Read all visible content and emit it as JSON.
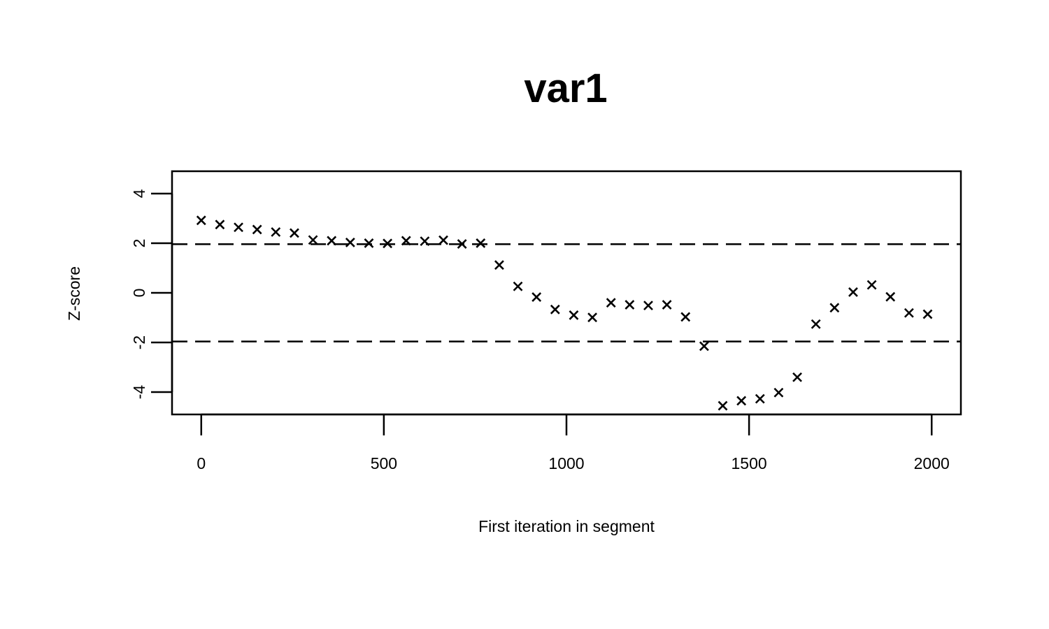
{
  "chart_data": {
    "type": "scatter",
    "title": "var1",
    "xlabel": "First iteration in segment",
    "ylabel": "Z-score",
    "xlim": [
      -80,
      2080
    ],
    "ylim": [
      -4.9,
      4.9
    ],
    "x_ticks": [
      0,
      500,
      1000,
      1500,
      2000
    ],
    "y_ticks": [
      -4,
      -2,
      0,
      2,
      4
    ],
    "reference_lines": [
      1.96,
      -1.96
    ],
    "marker": "x",
    "grid": false,
    "legend": "none",
    "color": "#000000",
    "points": [
      {
        "x": 0,
        "y": 2.92
      },
      {
        "x": 51,
        "y": 2.75
      },
      {
        "x": 102,
        "y": 2.64
      },
      {
        "x": 153,
        "y": 2.55
      },
      {
        "x": 204,
        "y": 2.45
      },
      {
        "x": 255,
        "y": 2.41
      },
      {
        "x": 306,
        "y": 2.13
      },
      {
        "x": 357,
        "y": 2.1
      },
      {
        "x": 408,
        "y": 2.03
      },
      {
        "x": 459,
        "y": 2.0
      },
      {
        "x": 510,
        "y": 1.99
      },
      {
        "x": 561,
        "y": 2.1
      },
      {
        "x": 612,
        "y": 2.08
      },
      {
        "x": 663,
        "y": 2.12
      },
      {
        "x": 714,
        "y": 1.97
      },
      {
        "x": 765,
        "y": 2.0
      },
      {
        "x": 816,
        "y": 1.12
      },
      {
        "x": 867,
        "y": 0.26
      },
      {
        "x": 918,
        "y": -0.17
      },
      {
        "x": 969,
        "y": -0.67
      },
      {
        "x": 1020,
        "y": -0.9
      },
      {
        "x": 1071,
        "y": -0.99
      },
      {
        "x": 1122,
        "y": -0.4
      },
      {
        "x": 1173,
        "y": -0.48
      },
      {
        "x": 1224,
        "y": -0.51
      },
      {
        "x": 1275,
        "y": -0.48
      },
      {
        "x": 1326,
        "y": -0.97
      },
      {
        "x": 1377,
        "y": -2.15
      },
      {
        "x": 1428,
        "y": -4.55
      },
      {
        "x": 1479,
        "y": -4.35
      },
      {
        "x": 1530,
        "y": -4.27
      },
      {
        "x": 1581,
        "y": -4.02
      },
      {
        "x": 1632,
        "y": -3.4
      },
      {
        "x": 1683,
        "y": -1.26
      },
      {
        "x": 1734,
        "y": -0.6
      },
      {
        "x": 1785,
        "y": 0.03
      },
      {
        "x": 1836,
        "y": 0.32
      },
      {
        "x": 1887,
        "y": -0.16
      },
      {
        "x": 1938,
        "y": -0.81
      },
      {
        "x": 1989,
        "y": -0.86
      }
    ]
  }
}
